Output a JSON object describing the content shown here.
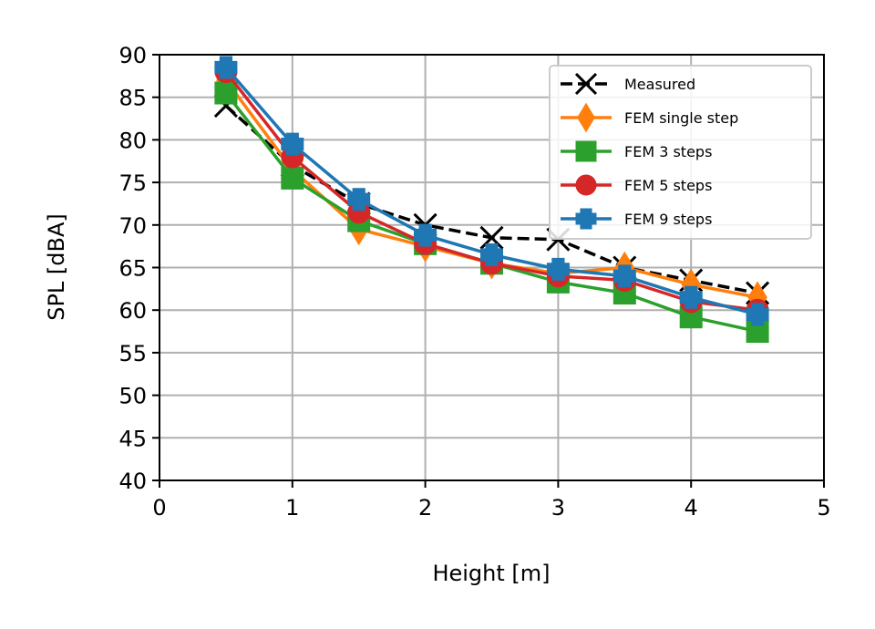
{
  "chart_data": {
    "type": "line",
    "title": "",
    "xlabel": "Height [m]",
    "ylabel": "SPL [dBA]",
    "xlim": [
      0,
      5
    ],
    "ylim": [
      40,
      90
    ],
    "xticks": [
      0,
      1,
      2,
      3,
      4,
      5
    ],
    "yticks": [
      40,
      45,
      50,
      55,
      60,
      65,
      70,
      75,
      80,
      85,
      90
    ],
    "grid": true,
    "legend_position": "top-right",
    "x": [
      0.5,
      1.0,
      1.5,
      2.0,
      2.5,
      3.0,
      3.5,
      4.0,
      4.5
    ],
    "series": [
      {
        "name": "Measured",
        "color": "#000000",
        "marker": "x",
        "dashed": true,
        "values": [
          84.0,
          77.0,
          72.5,
          70.0,
          68.5,
          68.3,
          65.0,
          63.5,
          62.0
        ]
      },
      {
        "name": "FEM single step",
        "color": "#ff7f0e",
        "marker": "diamond",
        "dashed": false,
        "values": [
          87.0,
          76.5,
          69.5,
          67.5,
          65.5,
          64.3,
          65.0,
          63.0,
          61.5
        ]
      },
      {
        "name": "FEM 3 steps",
        "color": "#2ca02c",
        "marker": "square",
        "dashed": false,
        "values": [
          85.5,
          75.5,
          70.5,
          67.8,
          65.5,
          63.3,
          62.0,
          59.2,
          57.5
        ]
      },
      {
        "name": "FEM 5 steps",
        "color": "#d62728",
        "marker": "circle",
        "dashed": false,
        "values": [
          88.0,
          78.0,
          71.5,
          67.8,
          65.5,
          64.0,
          63.5,
          61.0,
          60.0
        ]
      },
      {
        "name": "FEM 9 steps",
        "color": "#1f77b4",
        "marker": "plus",
        "dashed": false,
        "values": [
          88.5,
          79.5,
          73.0,
          68.8,
          66.5,
          64.8,
          64.0,
          61.5,
          59.5
        ]
      }
    ]
  }
}
